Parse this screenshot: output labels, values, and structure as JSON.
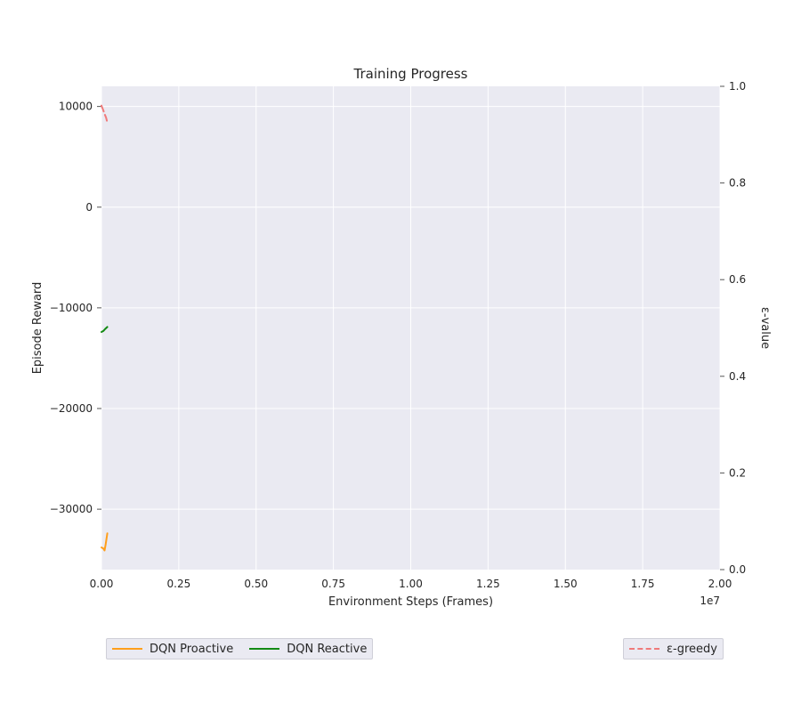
{
  "chart_data": {
    "type": "line",
    "title": "Training Progress",
    "xlabel": "Environment Steps (Frames)",
    "ylabel": "Episode Reward",
    "y2label": "ε-value",
    "xlim": [
      0,
      20000000
    ],
    "ylim": [
      -36000,
      12000
    ],
    "y2lim": [
      0,
      1
    ],
    "x_ticks": [
      "0.00",
      "0.25",
      "0.50",
      "0.75",
      "1.00",
      "1.25",
      "1.50",
      "1.75",
      "2.00"
    ],
    "x_offset_label": "1e7",
    "y_ticks": [
      "10000",
      "0",
      "−10000",
      "−20000",
      "−30000"
    ],
    "y_tick_values": [
      10000,
      0,
      -10000,
      -20000,
      -30000
    ],
    "y2_ticks": [
      "0.0",
      "0.2",
      "0.4",
      "0.6",
      "0.8",
      "1.0"
    ],
    "y2_tick_values": [
      0.0,
      0.2,
      0.4,
      0.6,
      0.8,
      1.0
    ],
    "grid": true,
    "series": [
      {
        "name": "DQN Proactive",
        "axis": "left",
        "color": "#ff9f1c",
        "dash": false,
        "x": [
          0,
          60000,
          100000,
          130000,
          160000,
          190000
        ],
        "y": [
          -33800,
          -33900,
          -34100,
          -33600,
          -33000,
          -32400
        ]
      },
      {
        "name": "DQN Reactive",
        "axis": "left",
        "color": "#138a13",
        "dash": false,
        "x": [
          0,
          60000,
          120000,
          190000
        ],
        "y": [
          -12400,
          -12300,
          -12100,
          -11900
        ]
      },
      {
        "name": "ε-greedy",
        "axis": "right",
        "color": "#f07a7a",
        "dash": true,
        "x": [
          0,
          50000,
          100000,
          150000,
          190000
        ],
        "y": [
          0.96,
          0.952,
          0.943,
          0.935,
          0.925
        ]
      }
    ],
    "legends": {
      "left": {
        "placement": "below-left",
        "entries": [
          "DQN Proactive",
          "DQN Reactive"
        ]
      },
      "right": {
        "placement": "below-right",
        "entries": [
          "ε-greedy"
        ]
      }
    }
  }
}
